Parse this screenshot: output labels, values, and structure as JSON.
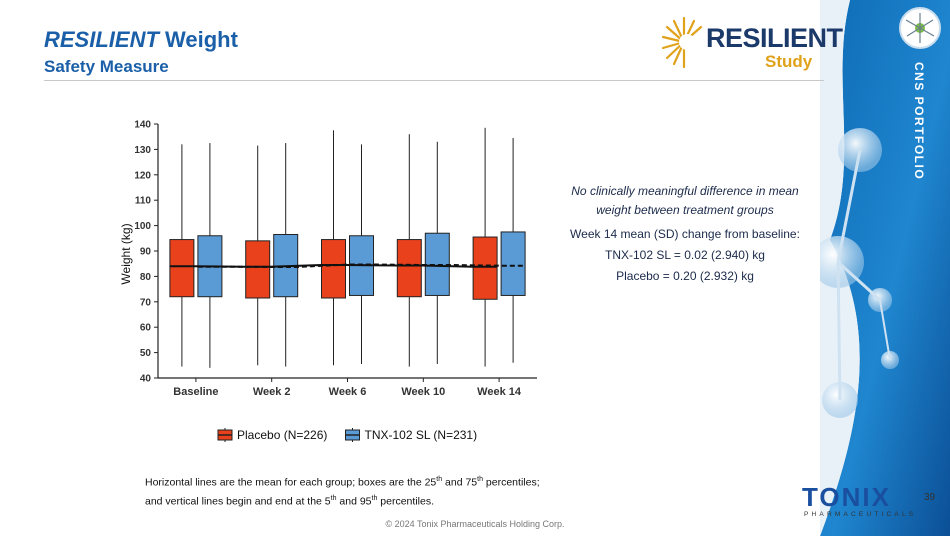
{
  "header": {
    "title_italic": "RESILIENT",
    "title_rest": "Weight",
    "subtitle": "Safety Measure"
  },
  "logo": {
    "word": "RESILIENT",
    "study": "Study"
  },
  "sidebar": {
    "label": "CNS PORTFOLIO"
  },
  "page_number": "39",
  "company_logo": {
    "word": "TONIX",
    "sub": "PHARMACEUTICALS"
  },
  "annotation": {
    "line1": "No clinically meaningful difference in mean weight between treatment groups",
    "line2": "Week 14 mean (SD) change from baseline:",
    "line3": "TNX-102 SL  = 0.02 (2.940) kg",
    "line4": "Placebo =  0.20 (2.932) kg"
  },
  "footnote": {
    "l1a": "Horizontal lines are the mean for each group; boxes are the 25",
    "l1sup1": "th",
    "l1b": " and 75",
    "l1sup2": "th",
    "l1c": " percentiles;",
    "l2a": "and vertical lines begin and end at the 5",
    "l2sup1": "th",
    "l2b": " and 95",
    "l2sup2": "th",
    "l2c": " percentiles."
  },
  "copyright": "© 2024 Tonix Pharmaceuticals Holding Corp.",
  "chart_data": {
    "type": "box",
    "categories": [
      "Baseline",
      "Week 2",
      "Week 6",
      "Week 10",
      "Week 14"
    ],
    "ylabel": "Weight (kg)",
    "ylim": [
      40,
      140
    ],
    "yticks": [
      40,
      50,
      60,
      70,
      80,
      90,
      100,
      110,
      120,
      130,
      140
    ],
    "legend_position": "bottom",
    "series": [
      {
        "name": "Placebo (N=226)",
        "color": "#e8411c",
        "q1": [
          72,
          71.5,
          71.5,
          72,
          71
        ],
        "q3": [
          94.5,
          94,
          94.5,
          94.5,
          95.5
        ],
        "p5": [
          44.5,
          45,
          45,
          44.5,
          44.5
        ],
        "p95": [
          132,
          131.5,
          137.5,
          136,
          138.5
        ],
        "mean": [
          84,
          83.8,
          84.5,
          84.3,
          83.8
        ]
      },
      {
        "name": "TNX-102 SL (N=231)",
        "color": "#5b9bd5",
        "q1": [
          72,
          72,
          72.5,
          72.5,
          72.5
        ],
        "q3": [
          96,
          96.5,
          96,
          97,
          97.5
        ],
        "p5": [
          44,
          44.5,
          45.5,
          45.5,
          46
        ],
        "p95": [
          132.5,
          132.5,
          132,
          133,
          134.5
        ],
        "mean": [
          83.8,
          83.7,
          84.7,
          84.5,
          84.2
        ]
      }
    ]
  }
}
